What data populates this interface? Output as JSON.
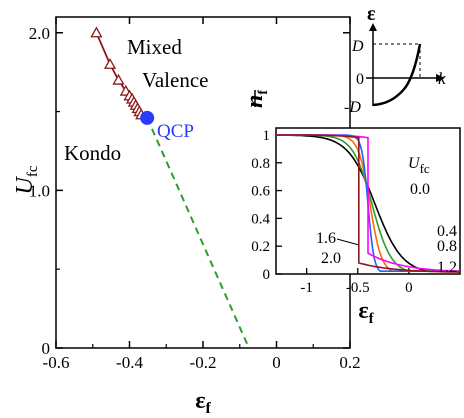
{
  "main_chart": {
    "type": "line",
    "xlabel_main": "ε",
    "xlabel_sub": "f",
    "ylabel_main": "U",
    "ylabel_sub": "fc",
    "xlim": [
      -0.6,
      0.2
    ],
    "ylim": [
      0,
      2.1
    ],
    "xticks": [
      -0.6,
      -0.4,
      -0.2,
      0,
      0.2
    ],
    "xtick_labels": [
      "-0.6",
      "-0.4",
      "-0.2",
      "0",
      "0.2"
    ],
    "yticks": [
      0,
      1.0,
      2.0
    ],
    "ytick_labels": [
      "0",
      "1.0",
      "2.0"
    ],
    "region_labels": {
      "kondo": "Kondo",
      "mixed": "Mixed",
      "valence": "Valence"
    },
    "qcp_label": "QCP",
    "qcp_point": {
      "x": -0.352,
      "y": 1.46
    },
    "first_order_line": {
      "color": "#8b1a1a",
      "points": [
        {
          "x": -0.49,
          "y": 2.0
        },
        {
          "x": -0.453,
          "y": 1.8
        },
        {
          "x": -0.43,
          "y": 1.7
        },
        {
          "x": -0.41,
          "y": 1.63
        },
        {
          "x": -0.4,
          "y": 1.6
        },
        {
          "x": -0.393,
          "y": 1.58
        },
        {
          "x": -0.388,
          "y": 1.56
        },
        {
          "x": -0.383,
          "y": 1.54
        },
        {
          "x": -0.378,
          "y": 1.52
        },
        {
          "x": -0.373,
          "y": 1.5
        },
        {
          "x": -0.368,
          "y": 1.48
        },
        {
          "x": -0.352,
          "y": 1.46
        }
      ]
    },
    "crossover_line": {
      "color": "#2aa02a",
      "points": [
        {
          "x": -0.352,
          "y": 1.46
        },
        {
          "x": -0.075,
          "y": 0.0
        }
      ]
    }
  },
  "dispersion_inset": {
    "ylabel": "ε",
    "xlabel": "k",
    "tick_D": "D",
    "tick_0": "0",
    "tick_mD": "-D"
  },
  "occupation_inset": {
    "type": "line",
    "ylabel": "n",
    "ylabel_sub": "f",
    "xlabel_main": "ε",
    "xlabel_sub": "f",
    "xlim": [
      -1.3,
      0.5
    ],
    "ylim": [
      0,
      1.05
    ],
    "xticks": [
      -1,
      -0.5,
      0
    ],
    "xtick_labels": [
      "-1",
      "-0.5",
      "0"
    ],
    "yticks": [
      0,
      0.2,
      0.4,
      0.6,
      0.8,
      1.0
    ],
    "ytick_labels": [
      "0",
      "0.2",
      "0.4",
      "0.6",
      "0.8",
      "1"
    ],
    "legend_title_main": "U",
    "legend_title_sub": "fc",
    "series": [
      {
        "name": "0.0",
        "color": "#000000",
        "style": "smooth",
        "x0": -0.33,
        "w": 0.4,
        "kind": "curve"
      },
      {
        "name": "0.4",
        "color": "#2aa02a",
        "style": "smooth",
        "x0": -0.36,
        "w": 0.28,
        "kind": "curve"
      },
      {
        "name": "0.8",
        "color": "#ff6a00",
        "style": "smooth",
        "x0": -0.38,
        "w": 0.17,
        "kind": "curve"
      },
      {
        "name": "1.2",
        "color": "#2b5bff",
        "style": "smooth",
        "x0": -0.4,
        "w": 0.09,
        "kind": "curve"
      },
      {
        "name": "1.6",
        "color": "#ff00ff",
        "style": "jump",
        "jump_x": -0.4,
        "low": 0.14,
        "kind": "jump"
      },
      {
        "name": "2.0",
        "color": "#8b1a1a",
        "style": "jump",
        "jump_x": -0.49,
        "low": 0.07,
        "kind": "jump"
      }
    ]
  }
}
